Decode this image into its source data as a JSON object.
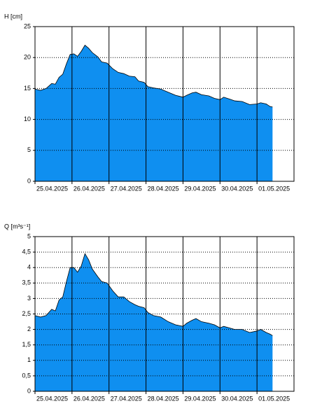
{
  "chart_data": [
    {
      "type": "area",
      "y_label": "H [cm]",
      "color": "#0f8ff0",
      "x": [
        0,
        0.15,
        0.3,
        0.45,
        0.55,
        0.65,
        0.75,
        0.85,
        0.95,
        1.05,
        1.15,
        1.25,
        1.35,
        1.45,
        1.55,
        1.7,
        1.8,
        1.95,
        2.1,
        2.25,
        2.4,
        2.55,
        2.7,
        2.8,
        2.95,
        3.05,
        3.2,
        3.4,
        3.6,
        3.8,
        4.0,
        4.1,
        4.25,
        4.35,
        4.5,
        4.7,
        4.85,
        5.0,
        5.1,
        5.25,
        5.4,
        5.6,
        5.8,
        6.0,
        6.1,
        6.25,
        6.35,
        6.42
      ],
      "values": [
        14.9,
        14.7,
        15.0,
        15.8,
        15.7,
        16.8,
        17.3,
        19.0,
        20.5,
        20.6,
        20.2,
        21.0,
        22.0,
        21.5,
        20.8,
        20.1,
        19.3,
        19.1,
        18.2,
        17.6,
        17.4,
        17.0,
        16.9,
        16.2,
        16.0,
        15.3,
        15.1,
        14.9,
        14.4,
        13.9,
        13.6,
        13.9,
        14.3,
        14.4,
        14.0,
        13.8,
        13.4,
        13.2,
        13.6,
        13.3,
        13.0,
        12.9,
        12.4,
        12.5,
        12.7,
        12.5,
        12.1,
        12.0
      ],
      "xlim": [
        0,
        7
      ],
      "xticks": [
        {
          "value": 0,
          "label": "25.04.2025"
        },
        {
          "value": 1,
          "label": "26.04.2025"
        },
        {
          "value": 2,
          "label": "27.04.2025"
        },
        {
          "value": 3,
          "label": "28.04.2025"
        },
        {
          "value": 4,
          "label": "29.04.2025"
        },
        {
          "value": 5,
          "label": "30.04.2025"
        },
        {
          "value": 6,
          "label": "01.05.2025"
        }
      ],
      "ylim": [
        0,
        25
      ],
      "yticks": [
        0,
        5,
        10,
        15,
        20,
        25
      ],
      "grid": true
    },
    {
      "type": "area",
      "y_label": "Q [m³s⁻¹]",
      "color": "#0f8ff0",
      "x": [
        0,
        0.15,
        0.3,
        0.45,
        0.55,
        0.65,
        0.75,
        0.85,
        0.95,
        1.05,
        1.15,
        1.25,
        1.35,
        1.45,
        1.55,
        1.7,
        1.8,
        1.95,
        2.1,
        2.25,
        2.4,
        2.55,
        2.7,
        2.8,
        2.95,
        3.05,
        3.2,
        3.4,
        3.6,
        3.8,
        4.0,
        4.1,
        4.25,
        4.35,
        4.5,
        4.7,
        4.85,
        5.0,
        5.1,
        5.25,
        5.4,
        5.6,
        5.8,
        6.0,
        6.1,
        6.25,
        6.35,
        6.42
      ],
      "values": [
        2.45,
        2.4,
        2.45,
        2.65,
        2.6,
        2.95,
        3.05,
        3.55,
        4.0,
        4.0,
        3.85,
        4.05,
        4.45,
        4.25,
        3.95,
        3.7,
        3.55,
        3.5,
        3.25,
        3.05,
        3.05,
        2.9,
        2.8,
        2.75,
        2.7,
        2.55,
        2.45,
        2.4,
        2.25,
        2.15,
        2.1,
        2.2,
        2.3,
        2.35,
        2.25,
        2.2,
        2.15,
        2.05,
        2.1,
        2.05,
        2.0,
        2.0,
        1.9,
        1.95,
        2.0,
        1.9,
        1.85,
        1.8
      ],
      "xlim": [
        0,
        7
      ],
      "xticks": [
        {
          "value": 0,
          "label": "25.04.2025"
        },
        {
          "value": 1,
          "label": "26.04.2025"
        },
        {
          "value": 2,
          "label": "27.04.2025"
        },
        {
          "value": 3,
          "label": "28.04.2025"
        },
        {
          "value": 4,
          "label": "29.04.2025"
        },
        {
          "value": 5,
          "label": "30.04.2025"
        },
        {
          "value": 6,
          "label": "01.05.2025"
        }
      ],
      "ylim": [
        0,
        5
      ],
      "yticks": [
        0,
        {
          "value": 0.5,
          "label": "0,5"
        },
        1,
        {
          "value": 1.5,
          "label": "1,5"
        },
        2,
        {
          "value": 2.5,
          "label": "2,5"
        },
        3,
        {
          "value": 3.5,
          "label": "3,5"
        },
        4,
        {
          "value": 4.5,
          "label": "4,5"
        },
        5
      ],
      "grid": true
    }
  ]
}
